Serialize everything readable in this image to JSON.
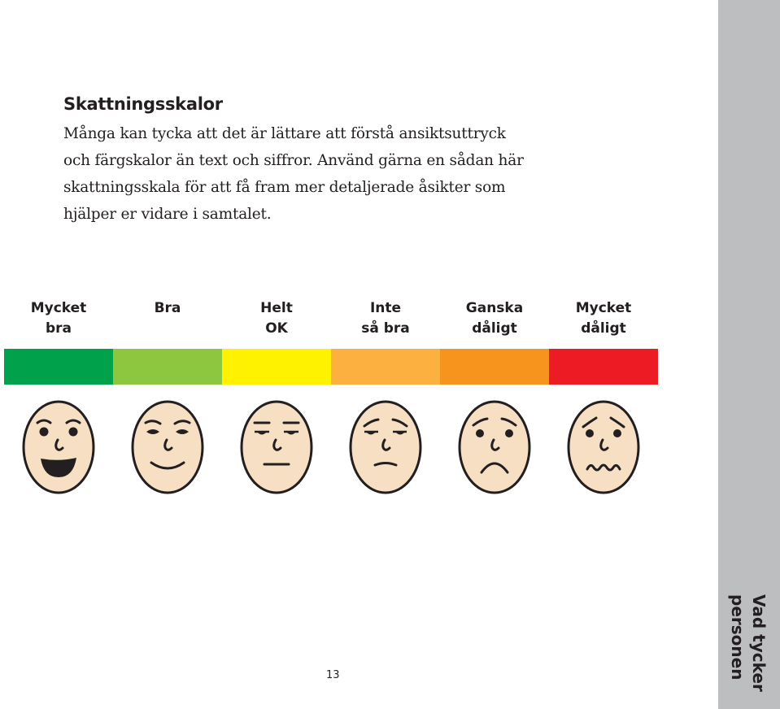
{
  "heading": "Skattningsskalor",
  "intro_lines": [
    "Många kan tycka att det är lättare att förstå ansiktsuttryck",
    "och färgskalor än text och siffror. Använd gärna en sådan här",
    "skattningsskala för att få fram mer detaljerade åsikter som",
    "hjälper er vidare i samtalet."
  ],
  "scale": [
    {
      "line1": "Mycket",
      "line2": "bra",
      "color": "#00a14b",
      "face": "very-happy-face-icon"
    },
    {
      "line1": "Bra",
      "line2": "",
      "color": "#8dc63f",
      "face": "happy-face-icon"
    },
    {
      "line1": "Helt",
      "line2": "OK",
      "color": "#fff200",
      "face": "neutral-face-icon"
    },
    {
      "line1": "Inte",
      "line2": "så bra",
      "color": "#fbb040",
      "face": "slightly-unhappy-face-icon"
    },
    {
      "line1": "Ganska",
      "line2": "dåligt",
      "color": "#f7941d",
      "face": "sad-face-icon"
    },
    {
      "line1": "Mycket",
      "line2": "dåligt",
      "color": "#ed1c24",
      "face": "very-sad-face-icon"
    }
  ],
  "page_number": "13",
  "side_tab": {
    "line1": "Vad tycker",
    "line2": "personen"
  },
  "colors": {
    "face_fill": "#f7dfc4",
    "tab_background": "#bcbec0",
    "ink": "#231f20"
  }
}
